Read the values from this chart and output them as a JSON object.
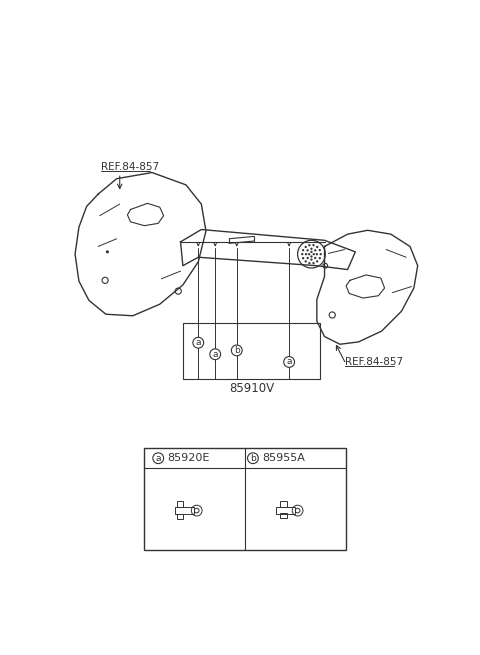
{
  "bg_color": "#ffffff",
  "line_color": "#333333",
  "ref_label": "REF.84-857",
  "part_label_main": "85910V",
  "part_a_label": "85920E",
  "part_b_label": "85955A",
  "figsize": [
    4.8,
    6.55
  ],
  "dpi": 100
}
